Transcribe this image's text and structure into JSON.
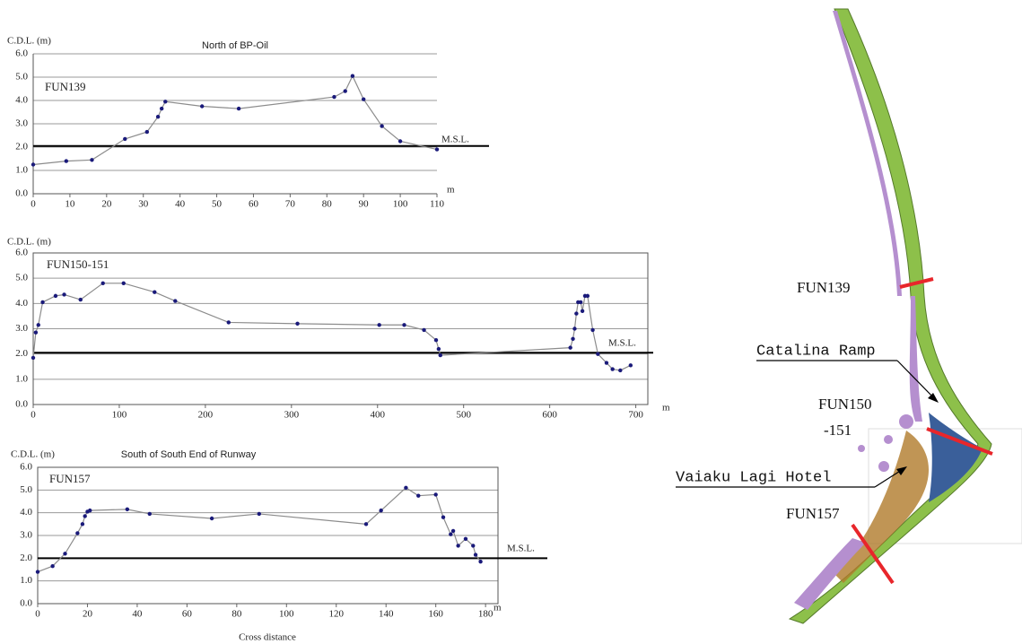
{
  "chart_data": [
    {
      "type": "line",
      "title": "North of BP-Oil",
      "y_label": "C.D.L. (m)",
      "x_unit": "m",
      "annotation": "FUN139",
      "box": false,
      "xlim": [
        0,
        110
      ],
      "xticks": [
        0,
        10,
        20,
        30,
        40,
        50,
        60,
        70,
        80,
        90,
        100,
        110
      ],
      "ylim": [
        0,
        6
      ],
      "yticks": [
        {
          "value": 0,
          "label": "0.0"
        },
        {
          "value": 1,
          "label": "1.0"
        },
        {
          "value": 2,
          "label": "2.0"
        },
        {
          "value": 3,
          "label": "3.0"
        },
        {
          "value": 4,
          "label": "4.0"
        },
        {
          "value": 5,
          "label": "5.0"
        },
        {
          "value": 6,
          "label": "6.0"
        }
      ],
      "grid": true,
      "reference_lines": [
        {
          "value": 2.05,
          "label": "M.S.L."
        }
      ],
      "series": [
        {
          "color": "#8c8c8c",
          "marker_color": "#1a1a7a",
          "x": [
            0,
            9,
            16,
            25,
            31,
            34,
            35,
            36,
            46,
            56,
            82,
            85,
            87,
            90,
            95,
            100,
            110
          ],
          "values": [
            1.25,
            1.4,
            1.45,
            2.35,
            2.65,
            3.3,
            3.65,
            3.95,
            3.75,
            3.65,
            4.15,
            4.4,
            5.05,
            4.05,
            2.9,
            2.25,
            1.9
          ]
        }
      ]
    },
    {
      "type": "line",
      "y_label": "C.D.L. (m)",
      "x_unit": "m",
      "annotation": "FUN150-151",
      "box": true,
      "xlim": [
        0,
        714
      ],
      "xticks": [
        0,
        100,
        200,
        300,
        400,
        500,
        600,
        700
      ],
      "ylim": [
        0,
        6
      ],
      "yticks": [
        {
          "value": 0,
          "label": "0.0"
        },
        {
          "value": 1,
          "label": "1.0"
        },
        {
          "value": 2,
          "label": "2.0"
        },
        {
          "value": 3,
          "label": "3.0"
        },
        {
          "value": 4,
          "label": "4.0"
        },
        {
          "value": 5,
          "label": "5.0"
        },
        {
          "value": 6,
          "label": "6.0"
        }
      ],
      "grid": true,
      "reference_lines": [
        {
          "value": 2.05,
          "label": "M.S.L."
        }
      ],
      "series": [
        {
          "color": "#8c8c8c",
          "marker_color": "#1a1a7a",
          "x": [
            0,
            3,
            6,
            11,
            26,
            36,
            55,
            81,
            105,
            141,
            165,
            227,
            307,
            402,
            431,
            454,
            468,
            471,
            473,
            624,
            627,
            629,
            631,
            633,
            636,
            638,
            641,
            644,
            650,
            656,
            666,
            673,
            682,
            694
          ],
          "values": [
            1.85,
            2.85,
            3.15,
            4.05,
            4.3,
            4.35,
            4.15,
            4.8,
            4.8,
            4.45,
            4.1,
            3.25,
            3.2,
            3.15,
            3.15,
            2.95,
            2.55,
            2.2,
            1.95,
            2.25,
            2.6,
            3.0,
            3.6,
            4.05,
            4.05,
            3.7,
            4.3,
            4.3,
            2.95,
            2.0,
            1.65,
            1.4,
            1.35,
            1.55
          ]
        }
      ]
    },
    {
      "type": "line",
      "title": "South of South End of Runway",
      "y_label": "C.D.L. (m)",
      "x_unit": "m",
      "x_label": "Cross distance",
      "annotation": "FUN157",
      "box": true,
      "xlim": [
        0,
        185
      ],
      "xticks": [
        0,
        20,
        40,
        60,
        80,
        100,
        120,
        140,
        160,
        180
      ],
      "ylim": [
        0,
        6
      ],
      "yticks": [
        {
          "value": 0,
          "label": "0.0"
        },
        {
          "value": 1,
          "label": "1.0"
        },
        {
          "value": 2,
          "label": "2.0"
        },
        {
          "value": 3,
          "label": "3.0"
        },
        {
          "value": 4,
          "label": "4.0"
        },
        {
          "value": 5,
          "label": "5.0"
        },
        {
          "value": 6,
          "label": "6.0"
        }
      ],
      "grid": true,
      "reference_lines": [
        {
          "value": 2.0,
          "label": "M.S.L."
        }
      ],
      "series": [
        {
          "color": "#8c8c8c",
          "marker_color": "#1a1a7a",
          "x": [
            0,
            6,
            11,
            16,
            18,
            19,
            20,
            21,
            36,
            45,
            70,
            89,
            132,
            138,
            148,
            153,
            160,
            163,
            166,
            167,
            169,
            172,
            175,
            176,
            178
          ],
          "values": [
            1.4,
            1.65,
            2.2,
            3.1,
            3.5,
            3.85,
            4.05,
            4.1,
            4.15,
            3.95,
            3.75,
            3.95,
            3.5,
            4.1,
            5.1,
            4.75,
            4.8,
            3.8,
            3.05,
            3.2,
            2.55,
            2.85,
            2.55,
            2.15,
            1.85
          ]
        }
      ]
    }
  ],
  "map": {
    "labels": [
      "FUN139",
      "Catalina Ramp",
      "FUN150",
      "-151",
      "Vaiaku Lagi Hotel",
      "FUN157"
    ]
  }
}
